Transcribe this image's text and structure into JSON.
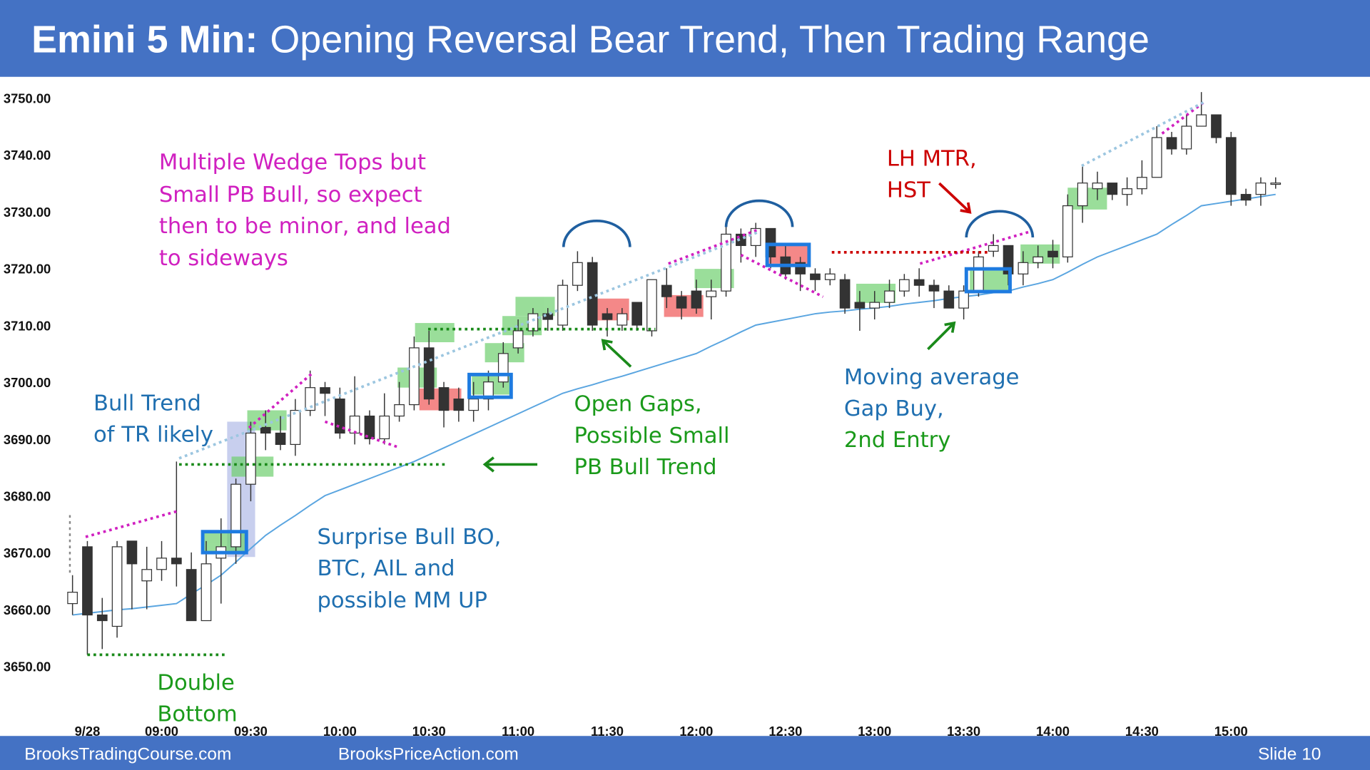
{
  "header": {
    "title_bold": "Emini 5 Min:",
    "title": "Opening Reversal Bear Trend, Then Trading Range"
  },
  "footer": {
    "left": "BrooksTradingCourse.com",
    "center": "BrooksPriceAction.com",
    "slide": "Slide  10"
  },
  "annotations": [
    {
      "lines": [
        "Multiple  Wedge Tops but",
        "Small PB Bull, so expect",
        "then to be minor, and lead",
        "to sideways"
      ]
    },
    {
      "lines": [
        "Bull Trend",
        "of TR likely"
      ]
    },
    {
      "lines": [
        "Double",
        "Bottom"
      ]
    },
    {
      "lines": [
        "Surprise Bull BO,",
        "BTC, AIL and",
        "possible  MM UP"
      ]
    },
    {
      "lines": [
        "Open Gaps,",
        "Possible  Small",
        "PB Bull Trend"
      ]
    },
    {
      "lines": [
        "LH MTR,",
        "HST"
      ]
    },
    {
      "lines": [
        "Moving average",
        "Gap Buy,",
        "2nd Entry"
      ]
    }
  ],
  "chart_data": {
    "type": "candlestick",
    "ylim": [
      3650,
      3750
    ],
    "yticks": [
      {
        "value": 3750,
        "label": "3750.00"
      },
      {
        "value": 3740,
        "label": "3740.00"
      },
      {
        "value": 3730,
        "label": "3730.00"
      },
      {
        "value": 3720,
        "label": "3720.00"
      },
      {
        "value": 3710,
        "label": "3710.00"
      },
      {
        "value": 3700,
        "label": "3700.00"
      },
      {
        "value": 3690,
        "label": "3690.00"
      },
      {
        "value": 3680,
        "label": "3680.00"
      },
      {
        "value": 3670,
        "label": "3670.00"
      },
      {
        "value": 3660,
        "label": "3660.00"
      },
      {
        "value": 3650,
        "label": "3650.00"
      }
    ],
    "xticks": [
      {
        "value": 1,
        "label": "9/28"
      },
      {
        "value": 6,
        "label": "09:00"
      },
      {
        "value": 12,
        "label": "09:30"
      },
      {
        "value": 18,
        "label": "10:00"
      },
      {
        "value": 24,
        "label": "10:30"
      },
      {
        "value": 30,
        "label": "11:00"
      },
      {
        "value": 36,
        "label": "11:30"
      },
      {
        "value": 42,
        "label": "12:00"
      },
      {
        "value": 48,
        "label": "12:30"
      },
      {
        "value": 54,
        "label": "13:00"
      },
      {
        "value": 60,
        "label": "13:30"
      },
      {
        "value": 66,
        "label": "14:00"
      },
      {
        "value": 72,
        "label": "14:30"
      },
      {
        "value": 78,
        "label": "15:00"
      }
    ],
    "up_color": "#ffffff",
    "down_color": "#333333",
    "open": [
      3661,
      3671,
      3659,
      3657,
      3672,
      3665,
      3667,
      3669,
      3667,
      3658,
      3669,
      3671,
      3682,
      3692,
      3691,
      3689,
      3695,
      3699,
      3697,
      3691,
      3694,
      3690,
      3694,
      3696,
      3706,
      3699,
      3697,
      3695,
      3697,
      3700,
      3706,
      3709,
      3712,
      3710,
      3717,
      3721,
      3712,
      3710,
      3714,
      3709,
      3717,
      3715,
      3716,
      3715,
      3716,
      3726,
      3724,
      3727,
      3722,
      3721,
      3719,
      3718,
      3718,
      3714,
      3713,
      3714,
      3716,
      3718,
      3717,
      3716,
      3713,
      3716,
      3723,
      3724,
      3719,
      3721,
      3723,
      3722,
      3731,
      3734,
      3735,
      3733,
      3734,
      3736,
      3743,
      3741,
      3745,
      3747,
      3743,
      3733,
      3733,
      3735
    ],
    "high": [
      3666,
      3672,
      3662,
      3672,
      3672,
      3671,
      3672,
      3686,
      3670,
      3672,
      3676,
      3683,
      3693,
      3695,
      3694,
      3697,
      3702,
      3700,
      3699,
      3701,
      3695,
      3698,
      3700,
      3708,
      3709,
      3700,
      3699,
      3700,
      3702,
      3707,
      3711,
      3713,
      3713,
      3718,
      3723,
      3722,
      3713,
      3713,
      3714,
      3718,
      3720,
      3716,
      3718,
      3718,
      3728,
      3727,
      3728,
      3727,
      3724,
      3722,
      3720,
      3720,
      3719,
      3716,
      3716,
      3718,
      3719,
      3720,
      3718,
      3717,
      3717,
      3723,
      3726,
      3724,
      3723,
      3724,
      3725,
      3733,
      3738,
      3737,
      3735,
      3736,
      3739,
      3745,
      3744,
      3747,
      3751,
      3747,
      3744,
      3734,
      3736,
      3736
    ],
    "low": [
      3659,
      3652,
      3653,
      3655,
      3660,
      3660,
      3665,
      3664,
      3658,
      3658,
      3661,
      3668,
      3679,
      3688,
      3688,
      3687,
      3694,
      3694,
      3690,
      3689,
      3689,
      3689,
      3693,
      3695,
      3696,
      3692,
      3693,
      3693,
      3695,
      3699,
      3705,
      3708,
      3709,
      3709,
      3716,
      3709,
      3708,
      3709,
      3709,
      3708,
      3713,
      3711,
      3712,
      3711,
      3715,
      3721,
      3722,
      3720,
      3718,
      3716,
      3716,
      3717,
      3712,
      3709,
      3711,
      3713,
      3715,
      3715,
      3713,
      3713,
      3711,
      3715,
      3722,
      3717,
      3717,
      3720,
      3720,
      3721,
      3728,
      3732,
      3732,
      3731,
      3733,
      3736,
      3740,
      3740,
      3745,
      3742,
      3731,
      3731,
      3731,
      3734
    ],
    "close": [
      3663,
      3659,
      3658,
      3671,
      3668,
      3667,
      3669,
      3668,
      3658,
      3668,
      3671,
      3682,
      3691,
      3691,
      3689,
      3695,
      3699,
      3698,
      3691,
      3694,
      3690,
      3694,
      3696,
      3706,
      3697,
      3695,
      3695,
      3697,
      3700,
      3705,
      3709,
      3712,
      3711,
      3717,
      3721,
      3710,
      3711,
      3712,
      3710,
      3718,
      3715,
      3713,
      3713,
      3716,
      3726,
      3724,
      3727,
      3722,
      3719,
      3719,
      3718,
      3719,
      3713,
      3713,
      3714,
      3716,
      3718,
      3717,
      3716,
      3713,
      3716,
      3722,
      3724,
      3719,
      3721,
      3722,
      3722,
      3731,
      3735,
      3735,
      3733,
      3734,
      3736,
      3743,
      3741,
      3745,
      3747,
      3743,
      3733,
      3732,
      3735,
      3735
    ],
    "moving_average": {
      "color": "#5aa5e0",
      "values": [
        3659,
        3659.3,
        3659.6,
        3659.9,
        3660.1,
        3660.4,
        3660.7,
        3661,
        3662.7,
        3664.3,
        3666,
        3668.3,
        3670.7,
        3673,
        3674.8,
        3676.5,
        3678.3,
        3680,
        3681,
        3682,
        3683,
        3684,
        3685,
        3686,
        3687.2,
        3688.4,
        3689.6,
        3690.8,
        3692,
        3693.2,
        3694.4,
        3695.6,
        3696.8,
        3698,
        3698.8,
        3699.5,
        3700.3,
        3701,
        3701.8,
        3702.6,
        3703.4,
        3704.2,
        3705,
        3706.3,
        3707.5,
        3708.8,
        3710,
        3710.5,
        3711,
        3711.5,
        3712,
        3712.3,
        3712.5,
        3712.8,
        3713,
        3713.3,
        3713.7,
        3714,
        3714.3,
        3714.7,
        3715,
        3715.3,
        3715.7,
        3716,
        3716.7,
        3717.3,
        3718,
        3719.3,
        3720.7,
        3722,
        3723,
        3724,
        3725,
        3726,
        3727.7,
        3729.3,
        3731,
        3731.4,
        3731.8,
        3732.2,
        3732.6,
        3733
      ]
    }
  }
}
